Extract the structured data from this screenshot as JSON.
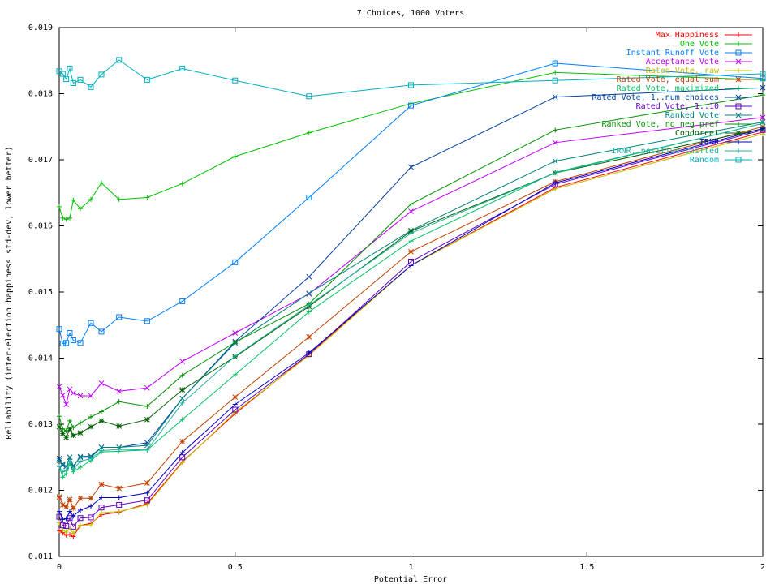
{
  "chart_data": {
    "type": "line",
    "title": "7 Choices, 1000 Voters",
    "xlabel": "Potential Error",
    "ylabel": "Reliability (inter-election happiness std-dev, lower better)",
    "xlim": [
      0,
      2
    ],
    "ylim": [
      0.011,
      0.019
    ],
    "x_ticks": [
      "0",
      "0.5",
      "1",
      "1.5",
      "2"
    ],
    "y_ticks": [
      "0.011",
      "0.012",
      "0.013",
      "0.014",
      "0.015",
      "0.016",
      "0.017",
      "0.018",
      "0.019"
    ],
    "legend_position": "top-right",
    "x": [
      0,
      0.01,
      0.02,
      0.03,
      0.04,
      0.06,
      0.09,
      0.12,
      0.17,
      0.25,
      0.35,
      0.5,
      0.71,
      1.0,
      1.41,
      2.0
    ],
    "series": [
      {
        "name": "Max Happiness",
        "color": "#ff0000",
        "marker": "plus",
        "values": [
          0.01139,
          0.01136,
          0.01132,
          0.01133,
          0.0113,
          0.01147,
          0.0115,
          0.01163,
          0.01167,
          0.0118,
          0.01243,
          0.01316,
          0.01406,
          0.0154,
          0.01658,
          0.01742
        ]
      },
      {
        "name": "One Vote",
        "color": "#00c000",
        "marker": "plus",
        "values": [
          0.01629,
          0.01612,
          0.0161,
          0.01612,
          0.01639,
          0.01626,
          0.0164,
          0.01665,
          0.0164,
          0.01643,
          0.01664,
          0.01705,
          0.01741,
          0.01785,
          0.01832,
          0.01821
        ]
      },
      {
        "name": "Instant Runoff Vote",
        "color": "#0080ff",
        "marker": "square",
        "values": [
          0.01444,
          0.01422,
          0.01423,
          0.01438,
          0.01427,
          0.01423,
          0.01453,
          0.0144,
          0.01462,
          0.01456,
          0.01486,
          0.01545,
          0.01643,
          0.01782,
          0.01846,
          0.01823
        ]
      },
      {
        "name": "Acceptance Vote",
        "color": "#c000ff",
        "marker": "x",
        "values": [
          0.01357,
          0.01344,
          0.0133,
          0.01353,
          0.01347,
          0.01343,
          0.01343,
          0.01362,
          0.0135,
          0.01355,
          0.01395,
          0.01438,
          0.01497,
          0.01622,
          0.01726,
          0.01764
        ]
      },
      {
        "name": "Rated Vote, raw",
        "color": "#c0c000",
        "marker": "plus",
        "values": [
          0.01151,
          0.0114,
          0.01137,
          0.01142,
          0.01135,
          0.01147,
          0.01148,
          0.01166,
          0.01168,
          0.01178,
          0.01242,
          0.01318,
          0.01404,
          0.0154,
          0.01656,
          0.01739
        ]
      },
      {
        "name": "Rated Vote, equal sum",
        "color": "#c04000",
        "marker": "star",
        "values": [
          0.0119,
          0.01178,
          0.01175,
          0.01186,
          0.01173,
          0.01188,
          0.01188,
          0.01209,
          0.01203,
          0.01211,
          0.01274,
          0.01341,
          0.01432,
          0.01561,
          0.01667,
          0.0175
        ]
      },
      {
        "name": "Rated Vote, maximized",
        "color": "#00c060",
        "marker": "plus",
        "values": [
          0.01236,
          0.0122,
          0.01225,
          0.0124,
          0.01228,
          0.01235,
          0.01245,
          0.01258,
          0.01259,
          0.01261,
          0.01307,
          0.01375,
          0.0147,
          0.01577,
          0.01681,
          0.01755
        ]
      },
      {
        "name": "Rated Vote, 1..num choices",
        "color": "#0040a0",
        "marker": "x",
        "values": [
          0.01248,
          0.01238,
          0.01236,
          0.0125,
          0.01237,
          0.0125,
          0.0125,
          0.01265,
          0.01265,
          0.01272,
          0.01339,
          0.01425,
          0.01523,
          0.01689,
          0.01795,
          0.01809
        ]
      },
      {
        "name": "Rated Vote, 1..10",
        "color": "#6000c0",
        "marker": "square",
        "values": [
          0.0116,
          0.01147,
          0.01146,
          0.01158,
          0.01145,
          0.01158,
          0.01159,
          0.01174,
          0.01178,
          0.01185,
          0.0125,
          0.01322,
          0.01406,
          0.01546,
          0.01663,
          0.01745
        ]
      },
      {
        "name": "Ranked Vote",
        "color": "#008080",
        "marker": "x",
        "values": [
          0.01245,
          0.0124,
          0.01236,
          0.0125,
          0.01236,
          0.01251,
          0.01252,
          0.01265,
          0.01265,
          0.01268,
          0.01339,
          0.01423,
          0.01498,
          0.01593,
          0.01698,
          0.01757
        ]
      },
      {
        "name": "Ranked Vote, no neg pref",
        "color": "#009000",
        "marker": "plus",
        "values": [
          0.01312,
          0.01293,
          0.0129,
          0.01305,
          0.01295,
          0.01302,
          0.01311,
          0.01319,
          0.01334,
          0.01327,
          0.01374,
          0.01424,
          0.01482,
          0.01633,
          0.01745,
          0.01798
        ]
      },
      {
        "name": "Condorcet",
        "color": "#006000",
        "marker": "star",
        "values": [
          0.01296,
          0.01286,
          0.0128,
          0.01293,
          0.01283,
          0.01287,
          0.01296,
          0.01305,
          0.01297,
          0.01307,
          0.01352,
          0.01402,
          0.01478,
          0.01592,
          0.0168,
          0.01747
        ]
      },
      {
        "name": "IRNR",
        "color": "#0000c0",
        "marker": "plus",
        "values": [
          0.01168,
          0.01156,
          0.01157,
          0.01168,
          0.01161,
          0.0117,
          0.01176,
          0.01189,
          0.01189,
          0.01196,
          0.01257,
          0.0133,
          0.01408,
          0.0154,
          0.01665,
          0.01747
        ]
      },
      {
        "name": "IRNR, positive shifted",
        "color": "#20b0a0",
        "marker": "plus",
        "values": [
          0.01236,
          0.01228,
          0.0123,
          0.01244,
          0.01232,
          0.01244,
          0.01248,
          0.0126,
          0.01262,
          0.01261,
          0.01332,
          0.01403,
          0.0148,
          0.01589,
          0.0168,
          0.01755
        ]
      },
      {
        "name": "Random",
        "color": "#00b0c0",
        "marker": "square",
        "values": [
          0.01834,
          0.0183,
          0.01822,
          0.01838,
          0.01816,
          0.01821,
          0.0181,
          0.01829,
          0.01851,
          0.01821,
          0.01838,
          0.0182,
          0.01796,
          0.01813,
          0.0182,
          0.0183
        ]
      }
    ]
  }
}
